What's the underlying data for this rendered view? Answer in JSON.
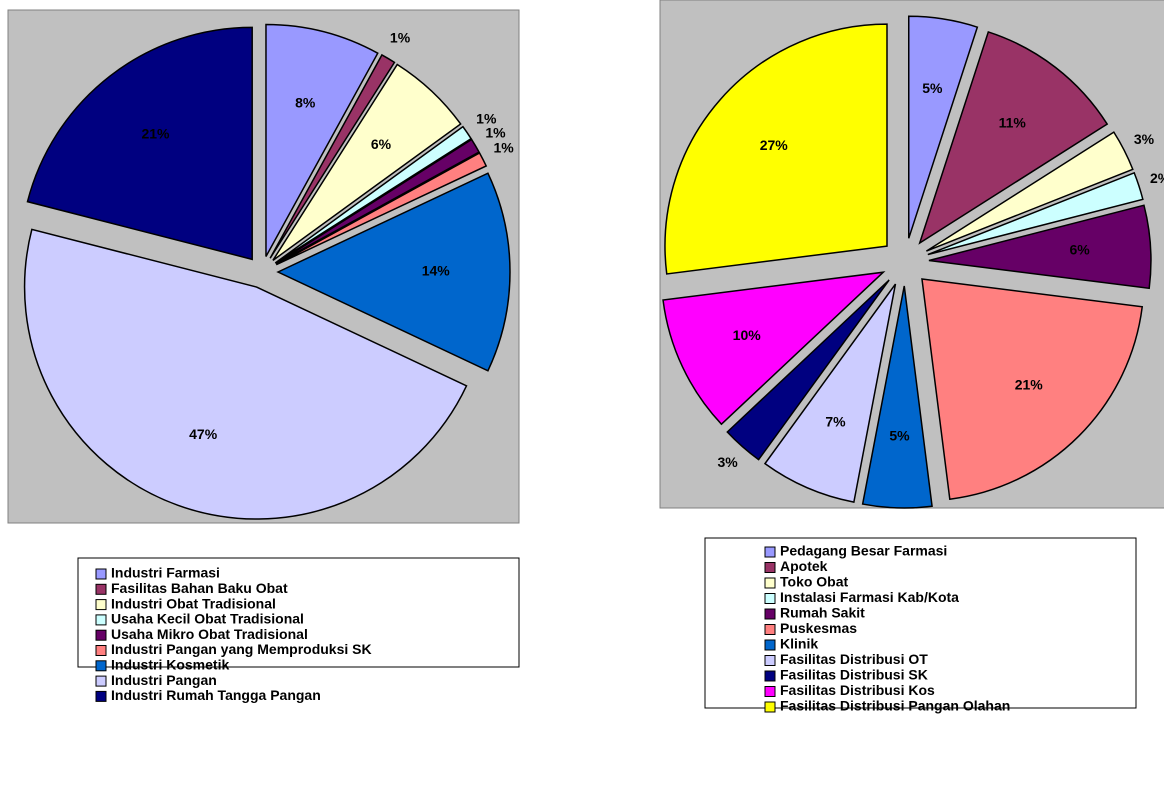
{
  "chart_data": [
    {
      "type": "pie",
      "categories": [
        "Industri Farmasi",
        "Fasilitas Bahan Baku Obat",
        "Industri Obat Tradisional",
        "Usaha Kecil Obat Tradisional",
        "Usaha Mikro Obat Tradisional",
        "Industri Pangan yang Memproduksi SK",
        "Industri Kosmetik",
        "Industri Pangan",
        "Industri Rumah Tangga Pangan"
      ],
      "values": [
        8,
        1,
        6,
        1,
        1,
        1,
        14,
        47,
        21
      ],
      "value_labels": [
        "8%",
        "1%",
        "6%",
        "1%",
        "1%",
        "1%",
        "14%",
        "47%",
        "21%"
      ],
      "colors": [
        "#9999ff",
        "#993366",
        "#ffffcc",
        "#ccffff",
        "#660066",
        "#ff8080",
        "#0066cc",
        "#ccccff",
        "#000080"
      ]
    },
    {
      "type": "pie",
      "categories": [
        "Pedagang Besar Farmasi",
        "Apotek",
        "Toko Obat",
        "Instalasi Farmasi Kab/Kota",
        "Rumah Sakit",
        "Puskesmas",
        "Klinik",
        "Fasilitas Distribusi OT",
        "Fasilitas Distribusi SK",
        "Fasilitas Distribusi Kos",
        "Fasilitas Distribusi Pangan Olahan"
      ],
      "values": [
        5,
        11,
        3,
        2,
        6,
        21,
        5,
        7,
        3,
        10,
        27
      ],
      "value_labels": [
        "5%",
        "11%",
        "3%",
        "2%",
        "6%",
        "21%",
        "5%",
        "7%",
        "3%",
        "10%",
        "27%"
      ],
      "colors": [
        "#9999ff",
        "#993366",
        "#ffffcc",
        "#ccffff",
        "#660066",
        "#ff8080",
        "#0066cc",
        "#ccccff",
        "#000080",
        "#ff00ff",
        "#ffff00"
      ]
    }
  ]
}
